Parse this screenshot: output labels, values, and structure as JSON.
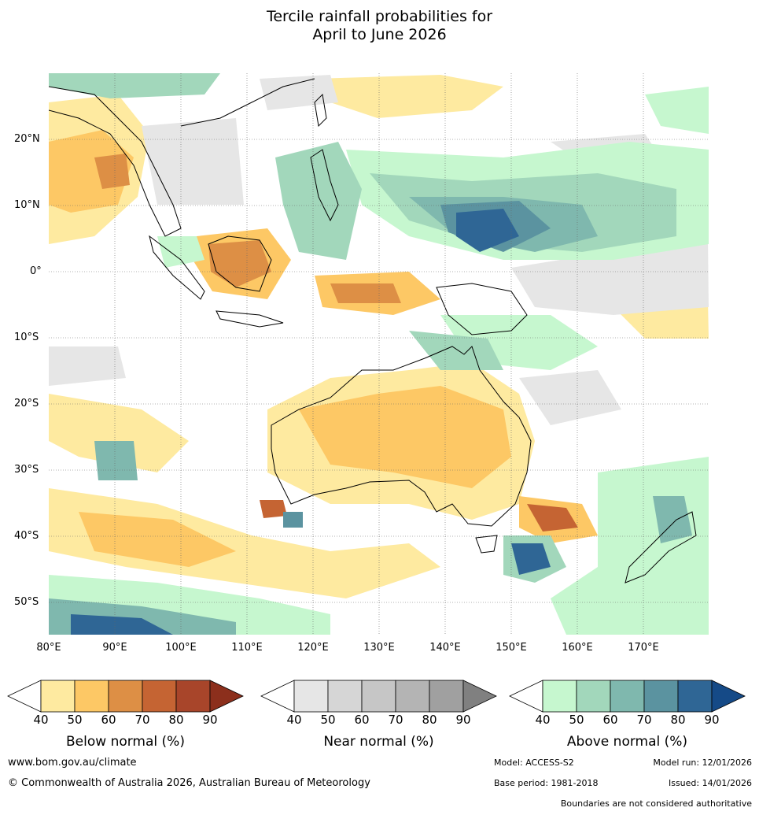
{
  "title": {
    "line1": "Tercile rainfall probabilities for",
    "line2": "April to June 2026"
  },
  "map": {
    "lat_labels": [
      "20°N",
      "10°N",
      "0°",
      "10°S",
      "20°S",
      "30°S",
      "40°S",
      "50°S"
    ],
    "lon_labels": [
      "80°E",
      "90°E",
      "100°E",
      "110°E",
      "120°E",
      "130°E",
      "140°E",
      "150°E",
      "160°E",
      "170°E"
    ]
  },
  "colorbars": [
    {
      "label": "Below normal (%)",
      "ticks": [
        "40",
        "50",
        "60",
        "70",
        "80",
        "90"
      ],
      "colors": [
        "#ffffff",
        "#feeaa0",
        "#fdc865",
        "#dd8f45",
        "#c56433",
        "#a8452a",
        "#8c2f1c"
      ]
    },
    {
      "label": "Near normal (%)",
      "ticks": [
        "40",
        "50",
        "60",
        "70",
        "80",
        "90"
      ],
      "colors": [
        "#ffffff",
        "#e6e6e6",
        "#d6d6d6",
        "#c6c6c6",
        "#b4b4b4",
        "#a0a0a0",
        "#808080"
      ]
    },
    {
      "label": "Above normal (%)",
      "ticks": [
        "40",
        "50",
        "60",
        "70",
        "80",
        "90"
      ],
      "colors": [
        "#ffffff",
        "#c6f7cf",
        "#a2d7bb",
        "#7fb8ae",
        "#5b93a0",
        "#2f6695",
        "#154a87"
      ]
    }
  ],
  "footer": {
    "website": "www.bom.gov.au/climate",
    "copyright": "© Commonwealth of Australia 2026, Australian Bureau of Meteorology",
    "model": "Model: ACCESS-S2",
    "model_run": "Model run: 12/01/2026",
    "base_period": "Base period: 1981-2018",
    "issued": "Issued: 14/01/2026",
    "disclaimer": "Boundaries are not considered authoritative"
  }
}
